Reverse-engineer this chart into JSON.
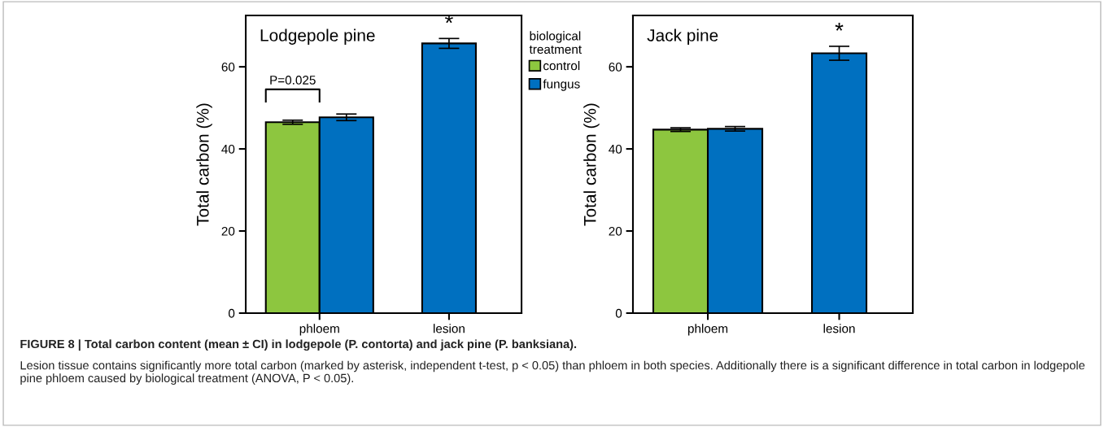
{
  "chart_data": [
    {
      "type": "bar",
      "title": "Lodgepole pine",
      "ylabel": "Total carbon (%)",
      "categories": [
        "phloem",
        "lesion"
      ],
      "ylim": [
        0,
        72.5
      ],
      "yticks": [
        0,
        20,
        40,
        60
      ],
      "grid": false,
      "legend": "right",
      "legend_title": "biological treatment",
      "series": [
        {
          "name": "control",
          "color": "#8dc63f",
          "values": [
            46.5,
            null
          ],
          "errors": [
            0.5,
            null
          ]
        },
        {
          "name": "fungus",
          "color": "#0070c0",
          "values": [
            47.7,
            65.7
          ],
          "errors": [
            0.8,
            1.2
          ]
        }
      ],
      "annotations": [
        "P=0.025",
        "*"
      ]
    },
    {
      "type": "bar",
      "title": "Jack pine",
      "ylabel": "Total carbon (%)",
      "categories": [
        "phloem",
        "lesion"
      ],
      "ylim": [
        0,
        72.5
      ],
      "yticks": [
        0,
        20,
        40,
        60
      ],
      "grid": false,
      "series": [
        {
          "color": "#8dc63f",
          "values": [
            44.7,
            null
          ],
          "errors": [
            0.45,
            null
          ]
        },
        {
          "color": "#0070c0",
          "values": [
            44.9,
            63.3
          ],
          "errors": [
            0.55,
            1.7
          ]
        }
      ],
      "annotations": [
        "*",
        "FIGURE 8 | Total carbon content (mean ± CI) in lodgepole (P. contorta) and jack pine (P. banksiana).",
        "Lesion tissue contains significantly more total carbon (marked by asterisk, independent t-test, p < 0.05) than phloem in both species. Additionally there is a significant difference in total carbon in lodgepole pine phloem caused by biological treatment (ANOVA, P < 0.05)."
      ]
    }
  ]
}
